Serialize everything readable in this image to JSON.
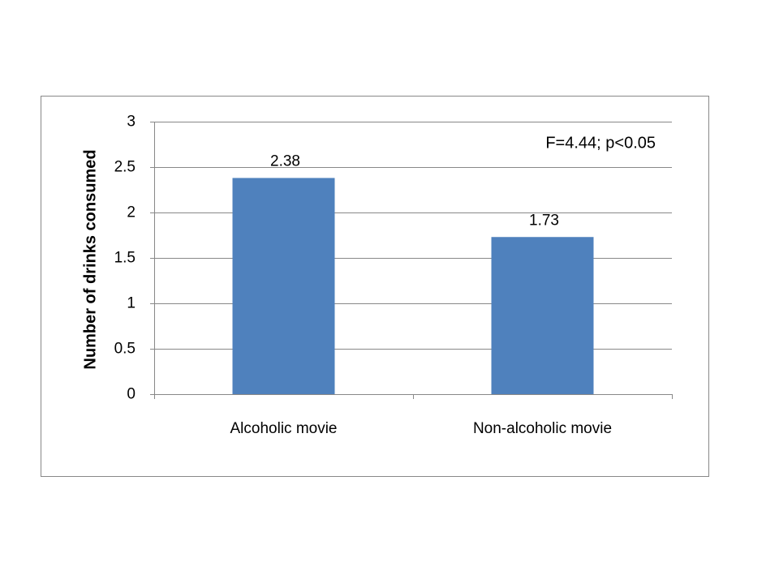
{
  "chart_data": {
    "type": "bar",
    "y_label": "Number of drinks consumed",
    "annotation": "F=4.44; p<0.05",
    "categories": [
      "Alcoholic movie",
      "Non-alcoholic movie"
    ],
    "values": [
      2.38,
      1.73
    ],
    "color": "#4f81bd",
    "ylim": [
      0,
      3
    ],
    "yticks": [
      0,
      0.5,
      1,
      1.5,
      2,
      2.5,
      3
    ],
    "grid": true
  }
}
